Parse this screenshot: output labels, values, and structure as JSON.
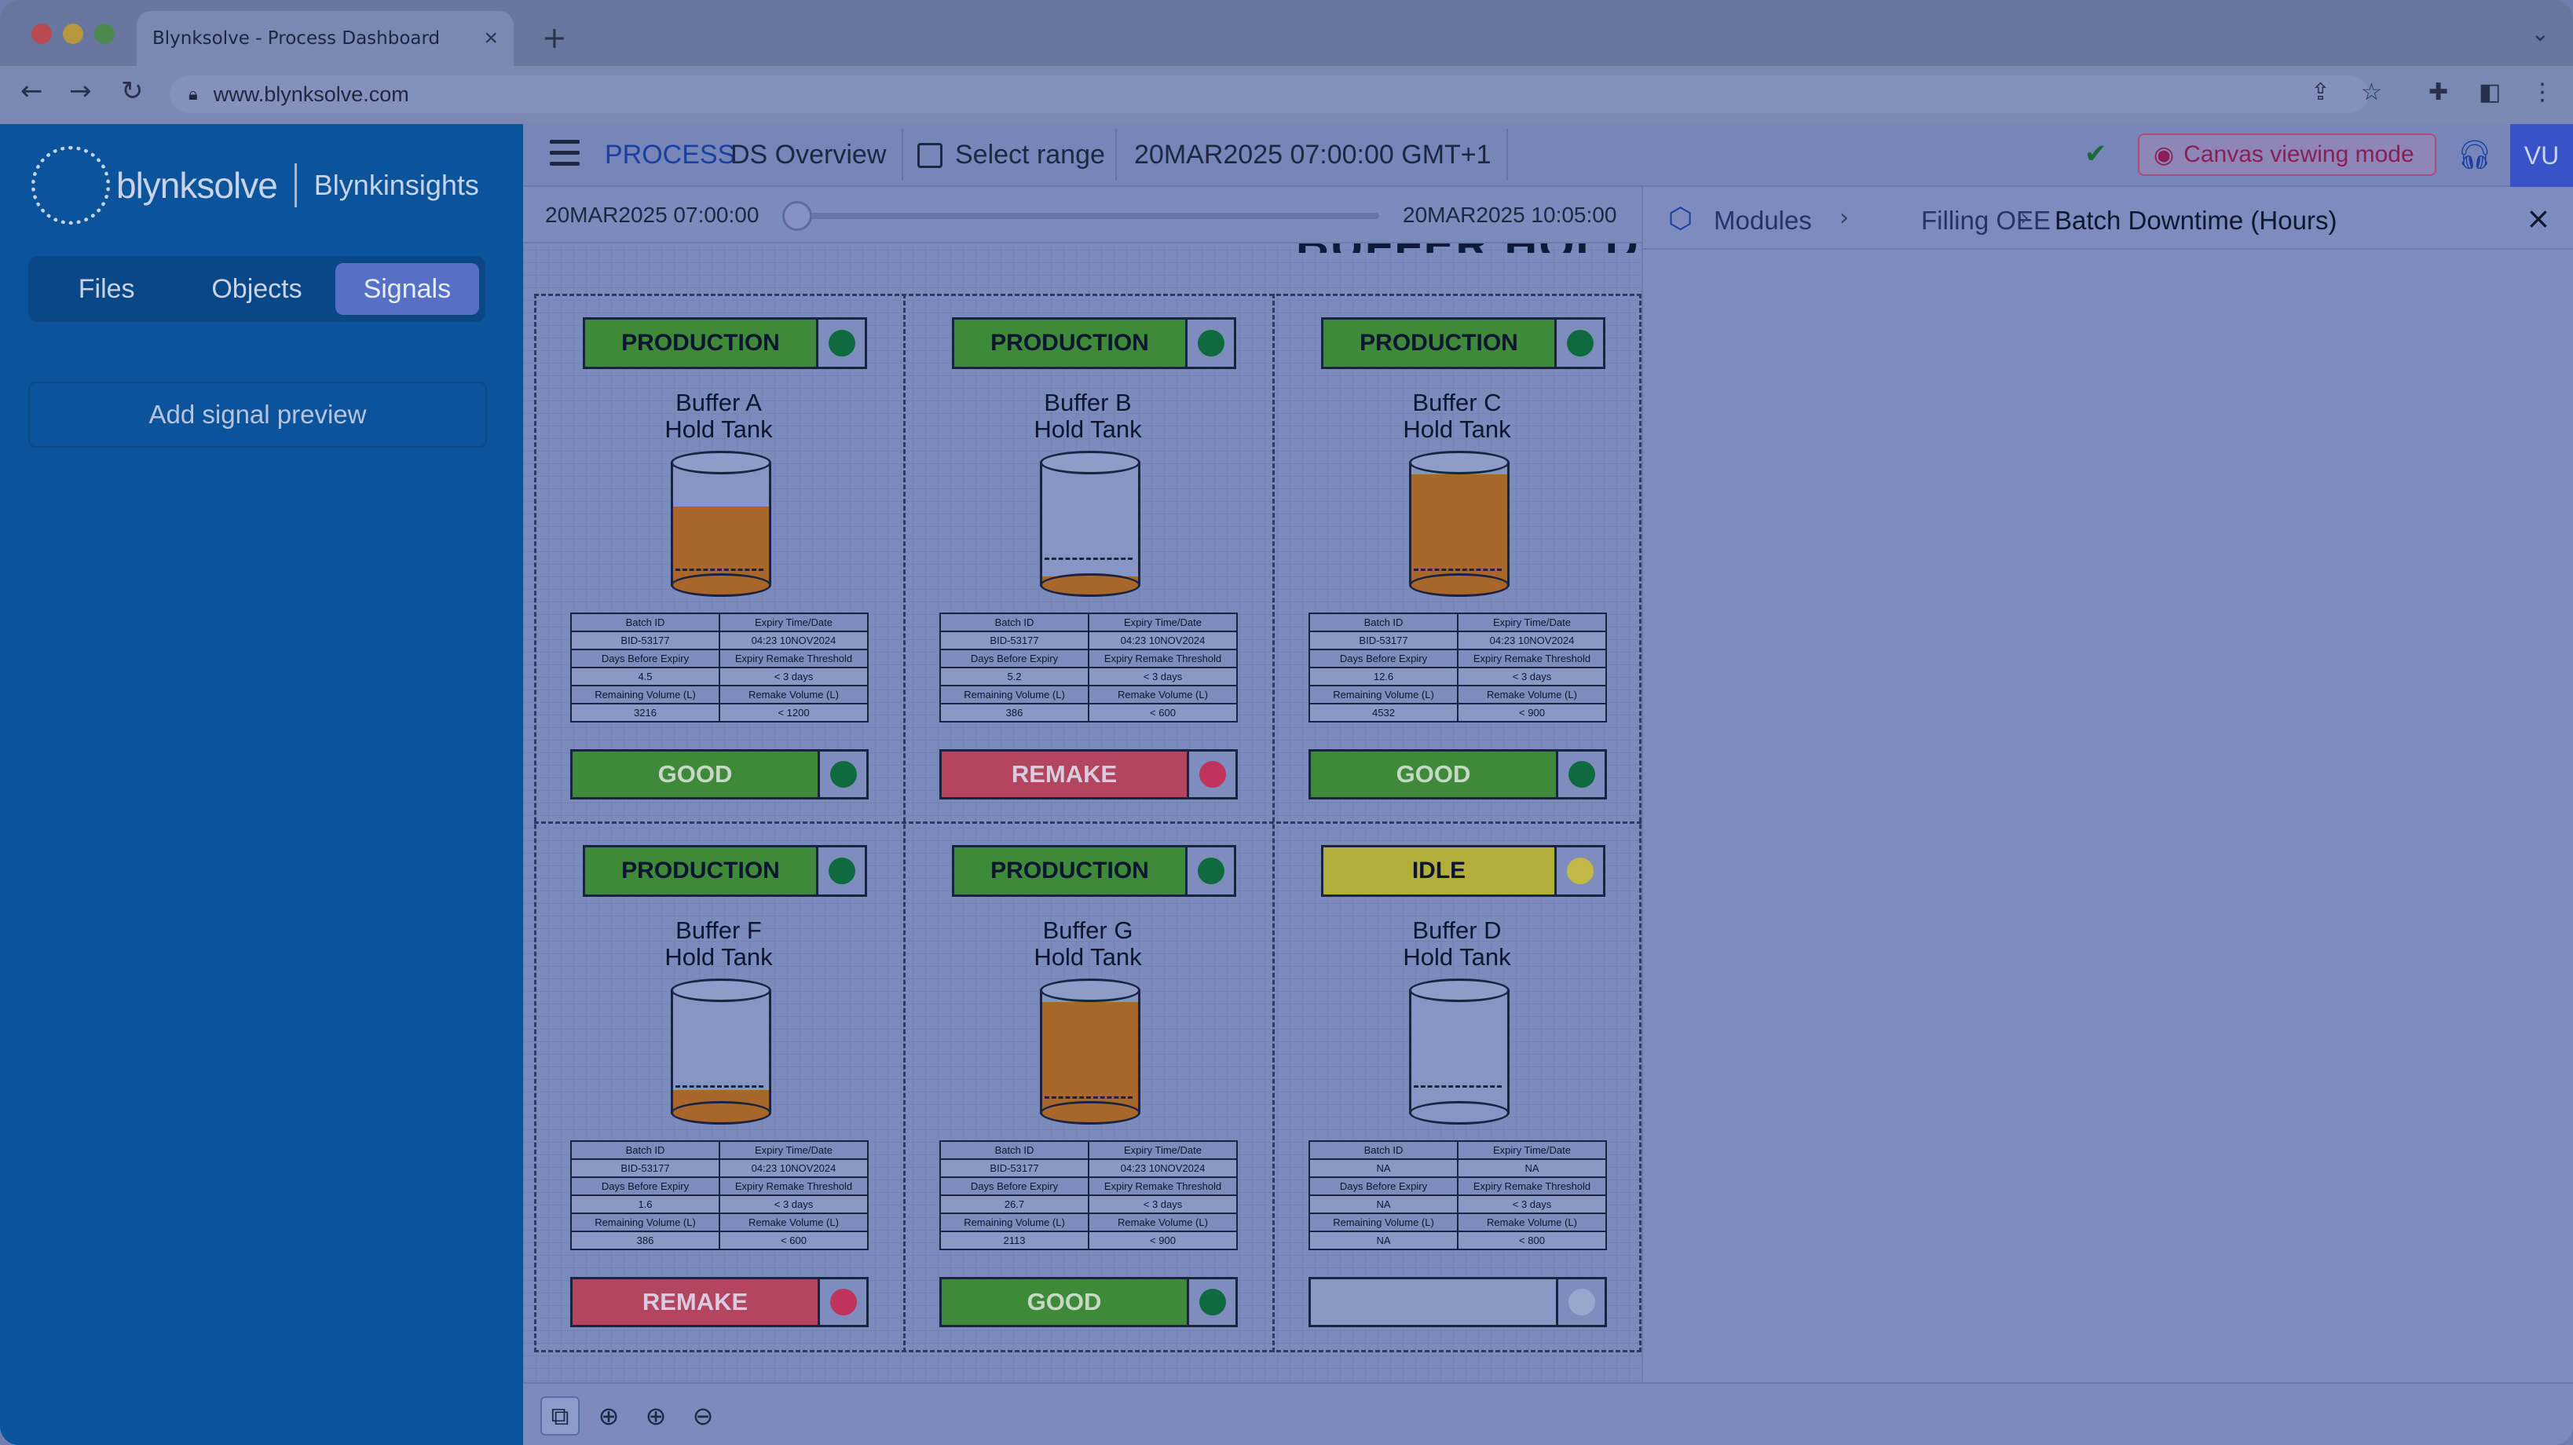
{
  "browser": {
    "tab_title": "Blynksolve - Process Dashboard",
    "tab_close": "×",
    "new_tab": "+",
    "tab_menu": "⌄",
    "url": "www.blynksolve.com",
    "icons": [
      "back-icon",
      "forward-icon",
      "reload-icon",
      "share-icon",
      "bookmark-star-icon",
      "extensions-icon",
      "sidebar-icon",
      "kebab-menu-icon"
    ]
  },
  "sidebar": {
    "brand": "blynksolve",
    "product": "Blynkinsights",
    "tabs": [
      {
        "label": "Files"
      },
      {
        "label": "Objects"
      },
      {
        "label": "Signals",
        "active": true
      }
    ],
    "add_signal": "Add signal preview"
  },
  "header": {
    "section": "PROCESS",
    "page": "DS Overview",
    "select_range": "Select range",
    "date": "20MAR2025 07:00:00 GMT+1",
    "canvas_mode": "Canvas viewing mode",
    "avatar": "VU"
  },
  "timeline": {
    "start": "20MAR2025 07:00:00",
    "end": "20MAR2025 10:05:00",
    "position": 0
  },
  "canvas_title": "BUFFER HOLD",
  "table_headers": {
    "batch_id": "Batch ID",
    "expiry": "Expiry Time/Date",
    "days": "Days Before Expiry",
    "threshold": "Expiry Remake Threshold",
    "remaining": "Remaining Volume (L)",
    "remake_vol": "Remake Volume (L)"
  },
  "colors": {
    "good": "#3f8a3a",
    "remake": "#b3455f",
    "idle": "#b3ad3a",
    "green_dot": "#0f6b3f",
    "red_dot": "#c0335a",
    "yellow_dot": "#c2b845",
    "grey_dot": "#9aa6cc",
    "liquid": "#a9662b"
  },
  "tanks": [
    {
      "status": "PRODUCTION",
      "status_color": "#3f8a3a",
      "dot": "#0f6b3f",
      "name1": "Buffer A",
      "name2": "Hold Tank",
      "fill": 0.62,
      "batch_id": "BID-53177",
      "expiry": "04:23 10NOV2024",
      "days": "4.5",
      "threshold": "< 3 days",
      "remaining": "3216",
      "remake_vol": "< 1200",
      "result": "GOOD",
      "result_color": "#3f8a3a",
      "result_dot": "#0f6b3f"
    },
    {
      "status": "PRODUCTION",
      "status_color": "#3f8a3a",
      "dot": "#0f6b3f",
      "name1": "Buffer B",
      "name2": "Hold Tank",
      "fill": 0.06,
      "batch_id": "BID-53177",
      "expiry": "04:23 10NOV2024",
      "days": "5.2",
      "threshold": "< 3 days",
      "remaining": "386",
      "remake_vol": "< 600",
      "result": "REMAKE",
      "result_color": "#b3455f",
      "result_dot": "#c0335a"
    },
    {
      "status": "PRODUCTION",
      "status_color": "#3f8a3a",
      "dot": "#0f6b3f",
      "name1": "Buffer C",
      "name2": "Hold Tank",
      "fill": 0.88,
      "batch_id": "BID-53177",
      "expiry": "04:23 10NOV2024",
      "days": "12.6",
      "threshold": "< 3 days",
      "remaining": "4532",
      "remake_vol": "< 900",
      "result": "GOOD",
      "result_color": "#3f8a3a",
      "result_dot": "#0f6b3f"
    },
    {
      "status": "PRODUCTION",
      "status_color": "#3f8a3a",
      "dot": "#0f6b3f",
      "name1": "Buffer F",
      "name2": "Hold Tank",
      "fill": 0.17,
      "batch_id": "BID-53177",
      "expiry": "04:23 10NOV2024",
      "days": "1.6",
      "threshold": "< 3 days",
      "remaining": "386",
      "remake_vol": "< 600",
      "result": "REMAKE",
      "result_color": "#b3455f",
      "result_dot": "#c0335a"
    },
    {
      "status": "PRODUCTION",
      "status_color": "#3f8a3a",
      "dot": "#0f6b3f",
      "name1": "Buffer G",
      "name2": "Hold Tank",
      "fill": 0.88,
      "batch_id": "BID-53177",
      "expiry": "04:23 10NOV2024",
      "days": "26.7",
      "threshold": "< 3 days",
      "remaining": "2113",
      "remake_vol": "< 900",
      "result": "GOOD",
      "result_color": "#3f8a3a",
      "result_dot": "#0f6b3f"
    },
    {
      "status": "IDLE",
      "status_color": "#b3ad3a",
      "dot": "#c2b845",
      "name1": "Buffer D",
      "name2": "Hold Tank",
      "fill": 0,
      "batch_id": "NA",
      "expiry": "NA",
      "days": "NA",
      "threshold": "< 3 days",
      "remaining": "NA",
      "remake_vol": "< 800",
      "result": "",
      "result_color": "#8a98c6",
      "result_dot": "#9aa6cc"
    }
  ],
  "right_panel": {
    "crumbs": [
      "Modules",
      "Filling OEE",
      "Batch Downtime (Hours)"
    ],
    "close": "×"
  },
  "bottom_tools": [
    "connect-icon",
    "recenter-icon",
    "zoom-in-icon",
    "zoom-out-icon"
  ]
}
